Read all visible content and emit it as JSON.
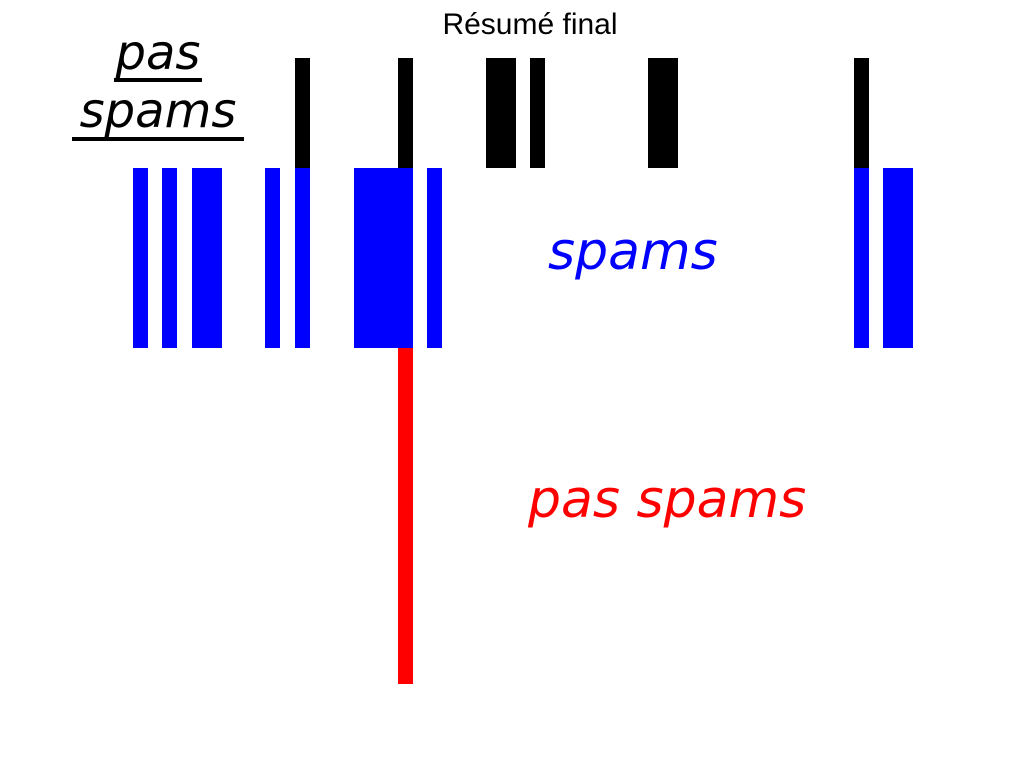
{
  "title": "Résumé final",
  "labels": {
    "black_line1": "pas",
    "black_line2": "spams",
    "blue": "spams",
    "red": "pas spams"
  },
  "colors": {
    "black": "#000000",
    "blue": "#0000ff",
    "red": "#ff0000"
  }
}
